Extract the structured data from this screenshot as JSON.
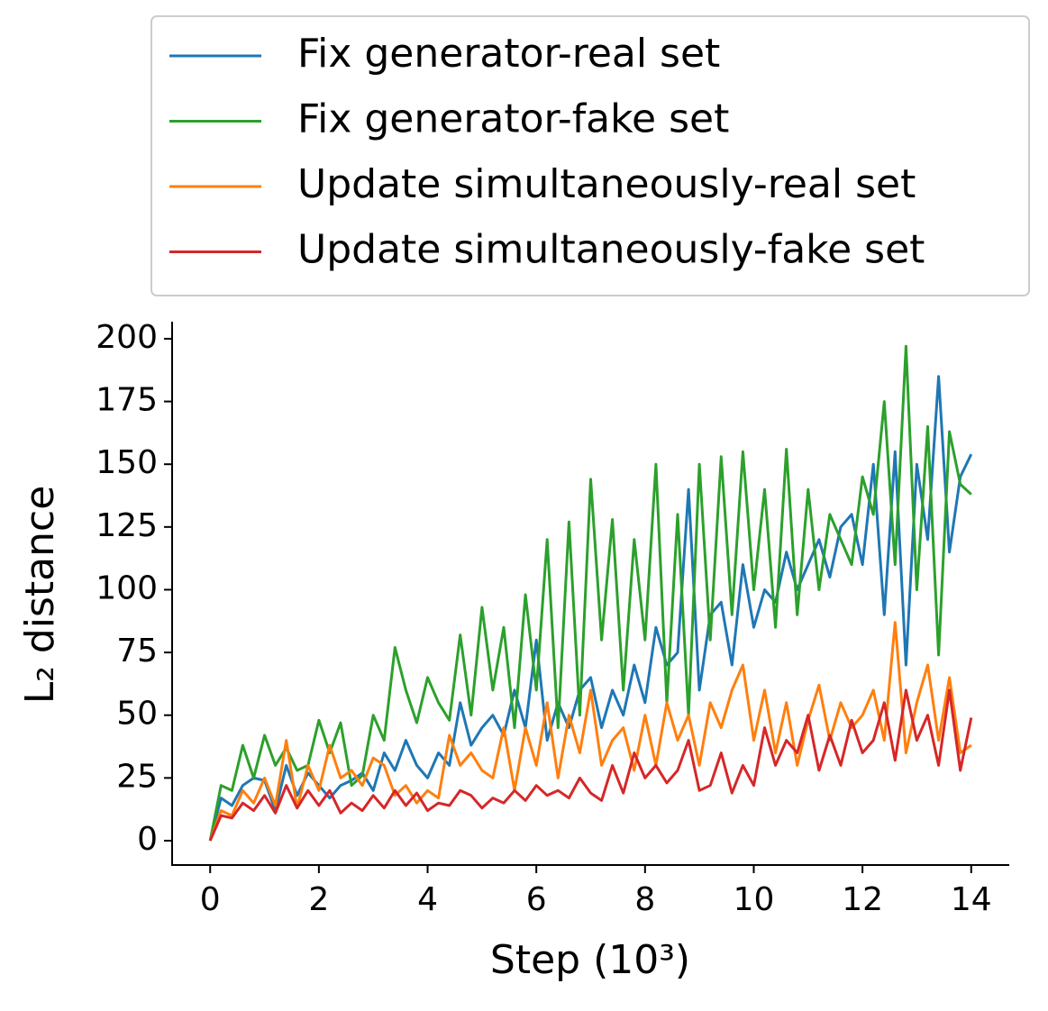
{
  "chart_data": {
    "type": "line",
    "xlabel": "Step (10³)",
    "ylabel": "L₂ distance",
    "x": [
      0,
      0.2,
      0.4,
      0.6,
      0.8,
      1,
      1.2,
      1.4,
      1.6,
      1.8,
      2,
      2.2,
      2.4,
      2.6,
      2.8,
      3,
      3.2,
      3.4,
      3.6,
      3.8,
      4,
      4.2,
      4.4,
      4.6,
      4.8,
      5,
      5.2,
      5.4,
      5.6,
      5.8,
      6,
      6.2,
      6.4,
      6.6,
      6.8,
      7,
      7.2,
      7.4,
      7.6,
      7.8,
      8,
      8.2,
      8.4,
      8.6,
      8.8,
      9,
      9.2,
      9.4,
      9.6,
      9.8,
      10,
      10.2,
      10.4,
      10.6,
      10.8,
      11,
      11.2,
      11.4,
      11.6,
      11.8,
      12,
      12.2,
      12.4,
      12.6,
      12.8,
      13,
      13.2,
      13.4,
      13.6,
      13.8,
      14
    ],
    "series": [
      {
        "name": "Fix generator-real set",
        "color": "#1f77b4",
        "values": [
          0,
          17,
          14,
          22,
          25,
          24,
          12,
          30,
          18,
          27,
          22,
          17,
          22,
          24,
          27,
          20,
          35,
          28,
          40,
          30,
          25,
          35,
          30,
          55,
          38,
          45,
          50,
          42,
          60,
          45,
          80,
          40,
          55,
          45,
          60,
          65,
          45,
          60,
          50,
          70,
          55,
          85,
          70,
          75,
          140,
          60,
          90,
          95,
          70,
          110,
          85,
          100,
          95,
          115,
          100,
          110,
          120,
          105,
          125,
          130,
          110,
          150,
          90,
          155,
          70,
          150,
          120,
          185,
          115,
          145,
          154
        ]
      },
      {
        "name": "Fix generator-fake set",
        "color": "#2ca02c",
        "values": [
          0,
          22,
          20,
          38,
          25,
          42,
          30,
          37,
          28,
          30,
          48,
          35,
          47,
          22,
          26,
          50,
          40,
          77,
          60,
          47,
          65,
          55,
          48,
          82,
          50,
          93,
          60,
          85,
          45,
          98,
          60,
          120,
          45,
          127,
          50,
          144,
          80,
          128,
          60,
          120,
          80,
          150,
          55,
          130,
          50,
          150,
          80,
          153,
          90,
          155,
          100,
          140,
          85,
          156,
          90,
          140,
          100,
          130,
          120,
          110,
          145,
          130,
          175,
          110,
          197,
          100,
          165,
          74,
          163,
          142,
          138
        ]
      },
      {
        "name": "Update simultaneously-real set",
        "color": "#ff7f0e",
        "values": [
          0,
          12,
          10,
          20,
          15,
          25,
          14,
          40,
          13,
          30,
          20,
          38,
          25,
          28,
          22,
          33,
          30,
          18,
          22,
          15,
          20,
          17,
          42,
          30,
          35,
          28,
          25,
          45,
          20,
          45,
          30,
          55,
          25,
          50,
          35,
          60,
          30,
          40,
          45,
          28,
          50,
          30,
          55,
          40,
          50,
          30,
          55,
          45,
          60,
          70,
          40,
          60,
          35,
          55,
          30,
          48,
          62,
          40,
          55,
          45,
          50,
          60,
          40,
          87,
          35,
          55,
          70,
          40,
          65,
          35,
          38
        ]
      },
      {
        "name": "Update simultaneously-fake set",
        "color": "#d62728",
        "values": [
          0,
          10,
          9,
          15,
          12,
          18,
          11,
          22,
          13,
          20,
          14,
          20,
          11,
          15,
          12,
          18,
          13,
          20,
          14,
          19,
          12,
          15,
          14,
          20,
          18,
          13,
          17,
          15,
          20,
          16,
          22,
          18,
          20,
          17,
          25,
          19,
          16,
          30,
          19,
          35,
          25,
          30,
          23,
          28,
          40,
          20,
          22,
          35,
          19,
          30,
          22,
          45,
          30,
          40,
          35,
          50,
          28,
          42,
          30,
          48,
          35,
          40,
          55,
          32,
          60,
          40,
          50,
          30,
          60,
          28,
          49
        ]
      }
    ],
    "xlim": [
      -0.7,
      14.7
    ],
    "xticks": [
      0,
      2,
      4,
      6,
      8,
      10,
      12,
      14
    ],
    "ylim": [
      -9.7,
      206.8
    ],
    "yticks": [
      0,
      25,
      50,
      75,
      100,
      125,
      150,
      175,
      200
    ],
    "legend": "top"
  }
}
